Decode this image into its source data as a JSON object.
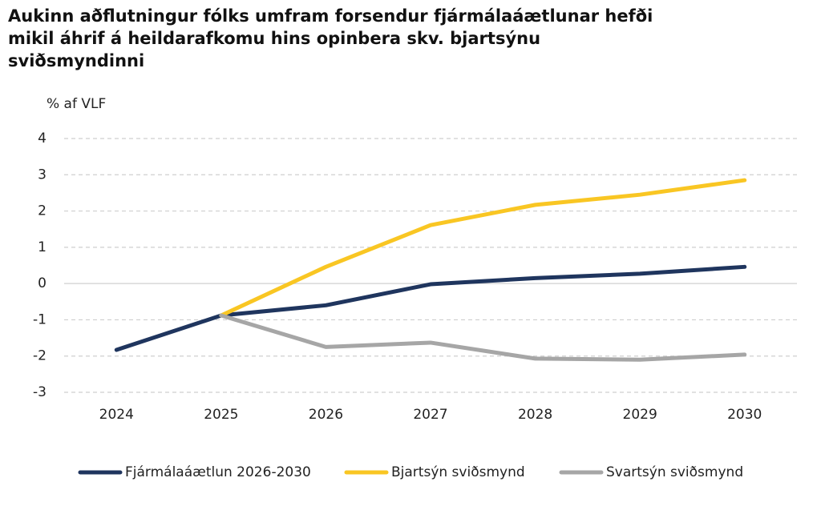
{
  "chart_data": {
    "type": "line",
    "title": "Aukinn aðflutningur fólks umfram forsendur fjármálaáætlunar hefði mikil áhrif á heildarafkomu hins opinbera skv. bjartsýnu sviðsmyndinni",
    "y_label": "% af VLF",
    "categories": [
      "2024",
      "2025",
      "2026",
      "2027",
      "2028",
      "2029",
      "2030"
    ],
    "series": [
      {
        "name": "Fjármálaáætlun 2026-2030",
        "color": "#1f355e",
        "values": [
          -1.83,
          -0.88,
          -0.6,
          -0.02,
          0.15,
          0.27,
          0.46
        ]
      },
      {
        "name": "Bjartsýn sviðsmynd",
        "color": "#f9c623",
        "values": [
          null,
          -0.88,
          0.46,
          1.61,
          2.17,
          2.45,
          2.85
        ]
      },
      {
        "name": "Svartsýn sviðsmynd",
        "color": "#a6a6a6",
        "values": [
          null,
          -0.88,
          -1.75,
          -1.63,
          -2.07,
          -2.1,
          -1.96
        ]
      }
    ],
    "ylim": [
      -3,
      4
    ],
    "yticks": [
      -3,
      -2,
      -1,
      0,
      1,
      2,
      3,
      4
    ],
    "grid": true,
    "legend": "bottom"
  }
}
